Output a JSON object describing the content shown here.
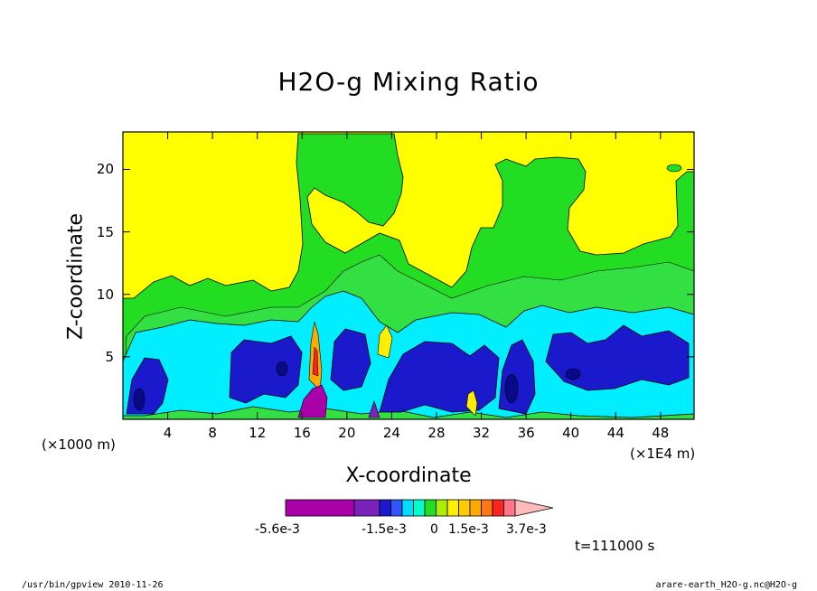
{
  "chart_data": {
    "type": "heatmap",
    "title": "H2O-g Mixing Ratio",
    "xlabel": "X-coordinate",
    "ylabel": "Z-coordinate",
    "x_unit_left": "(×1000 m)",
    "x_unit_right": "(×1E4 m)",
    "x_ticks": [
      "4",
      "8",
      "12",
      "16",
      "20",
      "24",
      "28",
      "32",
      "36",
      "40",
      "44",
      "48"
    ],
    "y_ticks": [
      "5",
      "10",
      "15",
      "20"
    ],
    "xlim": [
      0,
      51
    ],
    "ylim": [
      0,
      23
    ],
    "colorbar": {
      "colors": [
        "#aa00aa",
        "#7a22bb",
        "#1a1acc",
        "#3355ff",
        "#00ddff",
        "#00ffcc",
        "#22dd22",
        "#aaee00",
        "#ffee00",
        "#ffcc00",
        "#ffaa00",
        "#ff7711",
        "#ff2222",
        "#ff7788",
        "#ffbbbb"
      ],
      "labels": [
        "-5.6e-3",
        "-1.5e-3",
        "0",
        "1.5e-3",
        "3.7e-3"
      ]
    },
    "time_label": "t=111000 s",
    "footer_left": "/usr/bin/gpview  2010-11-26",
    "footer_right": "arare-earth_H2O-g.nc@H2O-g"
  }
}
